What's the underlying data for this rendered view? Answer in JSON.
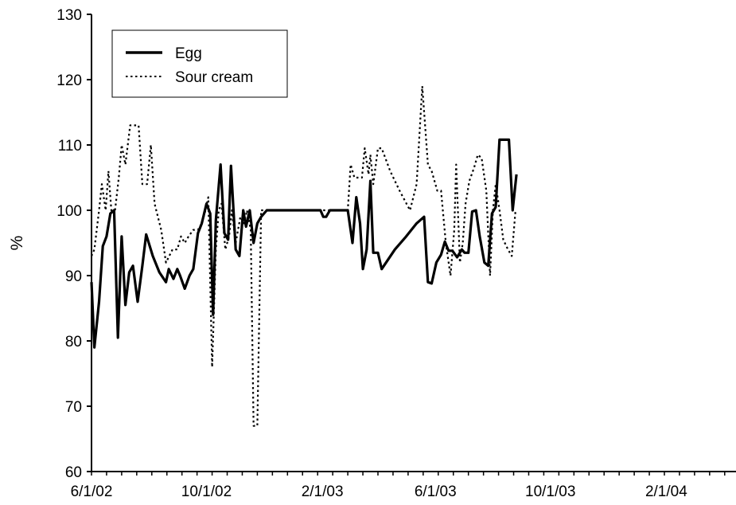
{
  "chart_data": {
    "type": "line",
    "title": "",
    "xlabel": "",
    "ylabel": "%",
    "ylim": [
      60,
      130
    ],
    "yticks": [
      60,
      70,
      80,
      90,
      100,
      110,
      120,
      130
    ],
    "xlim": [
      "2002-06-01",
      "2004-04-15"
    ],
    "xticks": [
      {
        "date": "2002-06-01",
        "label": "6/1/02"
      },
      {
        "date": "2002-10-01",
        "label": "10/1/02"
      },
      {
        "date": "2003-02-01",
        "label": "2/1/03"
      },
      {
        "date": "2003-06-01",
        "label": "6/1/03"
      },
      {
        "date": "2003-10-01",
        "label": "10/1/03"
      },
      {
        "date": "2004-02-01",
        "label": "2/1/04"
      }
    ],
    "grid": false,
    "legend": {
      "placement": "top-left"
    },
    "series": [
      {
        "name": "Egg",
        "style": "solid",
        "color": "#000000",
        "points": [
          [
            "2002-06-01",
            89
          ],
          [
            "2002-06-04",
            79
          ],
          [
            "2002-06-09",
            86
          ],
          [
            "2002-06-13",
            94.5
          ],
          [
            "2002-06-17",
            96
          ],
          [
            "2002-06-21",
            99.5
          ],
          [
            "2002-06-25",
            100
          ],
          [
            "2002-06-29",
            80.5
          ],
          [
            "2002-07-03",
            96
          ],
          [
            "2002-07-07",
            85.5
          ],
          [
            "2002-07-11",
            90.5
          ],
          [
            "2002-07-15",
            91.5
          ],
          [
            "2002-07-20",
            86
          ],
          [
            "2002-07-25",
            91.5
          ],
          [
            "2002-07-29",
            96.3
          ],
          [
            "2002-08-05",
            93
          ],
          [
            "2002-08-12",
            90.5
          ],
          [
            "2002-08-19",
            89
          ],
          [
            "2002-08-22",
            91
          ],
          [
            "2002-08-27",
            89.5
          ],
          [
            "2002-08-31",
            91
          ],
          [
            "2002-09-03",
            90
          ],
          [
            "2002-09-08",
            88
          ],
          [
            "2002-09-13",
            90
          ],
          [
            "2002-09-17",
            91
          ],
          [
            "2002-09-22",
            96.5
          ],
          [
            "2002-09-26",
            98
          ],
          [
            "2002-10-01",
            101
          ],
          [
            "2002-10-05",
            99.5
          ],
          [
            "2002-10-08",
            84
          ],
          [
            "2002-10-11",
            98.5
          ],
          [
            "2002-10-16",
            107
          ],
          [
            "2002-10-20",
            96.5
          ],
          [
            "2002-10-24",
            95.5
          ],
          [
            "2002-10-27",
            106.8
          ],
          [
            "2002-11-01",
            94
          ],
          [
            "2002-11-05",
            93
          ],
          [
            "2002-11-09",
            100
          ],
          [
            "2002-11-12",
            97.5
          ],
          [
            "2002-11-16",
            100
          ],
          [
            "2002-11-20",
            95
          ],
          [
            "2002-11-24",
            98
          ],
          [
            "2002-11-28",
            99
          ],
          [
            "2002-12-04",
            100
          ],
          [
            "2003-01-30",
            100
          ],
          [
            "2003-02-02",
            99
          ],
          [
            "2003-02-05",
            99
          ],
          [
            "2003-02-09",
            100
          ],
          [
            "2003-02-25",
            100
          ],
          [
            "2003-02-28",
            100
          ],
          [
            "2003-03-05",
            95
          ],
          [
            "2003-03-09",
            102
          ],
          [
            "2003-03-13",
            98
          ],
          [
            "2003-03-16",
            91
          ],
          [
            "2003-03-20",
            94
          ],
          [
            "2003-03-24",
            104.5
          ],
          [
            "2003-03-27",
            93.5
          ],
          [
            "2003-04-01",
            93.5
          ],
          [
            "2003-04-05",
            91
          ],
          [
            "2003-04-19",
            94
          ],
          [
            "2003-05-01",
            96
          ],
          [
            "2003-05-12",
            98
          ],
          [
            "2003-05-20",
            99
          ],
          [
            "2003-05-24",
            89
          ],
          [
            "2003-05-28",
            88.8
          ],
          [
            "2003-06-02",
            92
          ],
          [
            "2003-06-07",
            93.2
          ],
          [
            "2003-06-11",
            95.2
          ],
          [
            "2003-06-15",
            93.8
          ],
          [
            "2003-06-19",
            93.8
          ],
          [
            "2003-06-24",
            92.8
          ],
          [
            "2003-06-29",
            94
          ],
          [
            "2003-07-02",
            93.5
          ],
          [
            "2003-07-06",
            93.5
          ],
          [
            "2003-07-10",
            99.8
          ],
          [
            "2003-07-14",
            100
          ],
          [
            "2003-07-18",
            96
          ],
          [
            "2003-07-23",
            92
          ],
          [
            "2003-07-27",
            91.5
          ],
          [
            "2003-07-31",
            99.5
          ],
          [
            "2003-08-04",
            100.5
          ],
          [
            "2003-08-08",
            110.8
          ],
          [
            "2003-08-13",
            110.8
          ],
          [
            "2003-08-18",
            110.8
          ],
          [
            "2003-08-22",
            100
          ],
          [
            "2003-08-26",
            105.5
          ]
        ]
      },
      {
        "name": "Sour cream",
        "style": "dotted",
        "color": "#000000",
        "points": [
          [
            "2002-06-01",
            93
          ],
          [
            "2002-06-04",
            94
          ],
          [
            "2002-06-09",
            100
          ],
          [
            "2002-06-12",
            104
          ],
          [
            "2002-06-16",
            100
          ],
          [
            "2002-06-19",
            106
          ],
          [
            "2002-06-22",
            100
          ],
          [
            "2002-06-26",
            100
          ],
          [
            "2002-06-30",
            105
          ],
          [
            "2002-07-03",
            110
          ],
          [
            "2002-07-07",
            107
          ],
          [
            "2002-07-12",
            113
          ],
          [
            "2002-07-17",
            113
          ],
          [
            "2002-07-21",
            113
          ],
          [
            "2002-07-25",
            104
          ],
          [
            "2002-07-30",
            104
          ],
          [
            "2002-08-03",
            110
          ],
          [
            "2002-08-07",
            101
          ],
          [
            "2002-08-14",
            97
          ],
          [
            "2002-08-19",
            92
          ],
          [
            "2002-08-26",
            94
          ],
          [
            "2002-08-31",
            94
          ],
          [
            "2002-09-04",
            96
          ],
          [
            "2002-09-08",
            95
          ],
          [
            "2002-09-12",
            96
          ],
          [
            "2002-09-17",
            97
          ],
          [
            "2002-09-22",
            97
          ],
          [
            "2002-09-26",
            98
          ],
          [
            "2002-09-30",
            100
          ],
          [
            "2002-10-03",
            102
          ],
          [
            "2002-10-07",
            76
          ],
          [
            "2002-10-11",
            94
          ],
          [
            "2002-10-14",
            100
          ],
          [
            "2002-10-17",
            101
          ],
          [
            "2002-10-21",
            94
          ],
          [
            "2002-10-25",
            96
          ],
          [
            "2002-10-28",
            100
          ],
          [
            "2002-11-01",
            95
          ],
          [
            "2002-11-06",
            99
          ],
          [
            "2002-11-10",
            98
          ],
          [
            "2002-11-13",
            100
          ],
          [
            "2002-11-17",
            97
          ],
          [
            "2002-11-20",
            67
          ],
          [
            "2002-11-24",
            67
          ],
          [
            "2002-11-28",
            100
          ],
          [
            "2003-02-28",
            100
          ],
          [
            "2003-03-03",
            107
          ],
          [
            "2003-03-07",
            105
          ],
          [
            "2003-03-15",
            105
          ],
          [
            "2003-03-18",
            109.5
          ],
          [
            "2003-03-22",
            105.5
          ],
          [
            "2003-03-24",
            108.5
          ],
          [
            "2003-03-27",
            104
          ],
          [
            "2003-04-01",
            109.5
          ],
          [
            "2003-04-05",
            109.5
          ],
          [
            "2003-04-14",
            106
          ],
          [
            "2003-04-24",
            103
          ],
          [
            "2003-05-05",
            100
          ],
          [
            "2003-05-12",
            104
          ],
          [
            "2003-05-18",
            119
          ],
          [
            "2003-05-24",
            107
          ],
          [
            "2003-05-28",
            106
          ],
          [
            "2003-06-03",
            103
          ],
          [
            "2003-06-07",
            103
          ],
          [
            "2003-06-12",
            95
          ],
          [
            "2003-06-17",
            90
          ],
          [
            "2003-06-21",
            97
          ],
          [
            "2003-06-23",
            107
          ],
          [
            "2003-06-27",
            92
          ],
          [
            "2003-06-30",
            95
          ],
          [
            "2003-07-03",
            101
          ],
          [
            "2003-07-07",
            104.5
          ],
          [
            "2003-07-12",
            106.5
          ],
          [
            "2003-07-16",
            108.5
          ],
          [
            "2003-07-20",
            108
          ],
          [
            "2003-07-25",
            103
          ],
          [
            "2003-07-29",
            90
          ],
          [
            "2003-08-01",
            100
          ],
          [
            "2003-08-04",
            104
          ],
          [
            "2003-08-08",
            100
          ],
          [
            "2003-08-12",
            95.5
          ],
          [
            "2003-08-17",
            94
          ],
          [
            "2003-08-21",
            93
          ],
          [
            "2003-08-25",
            100
          ]
        ]
      }
    ]
  }
}
